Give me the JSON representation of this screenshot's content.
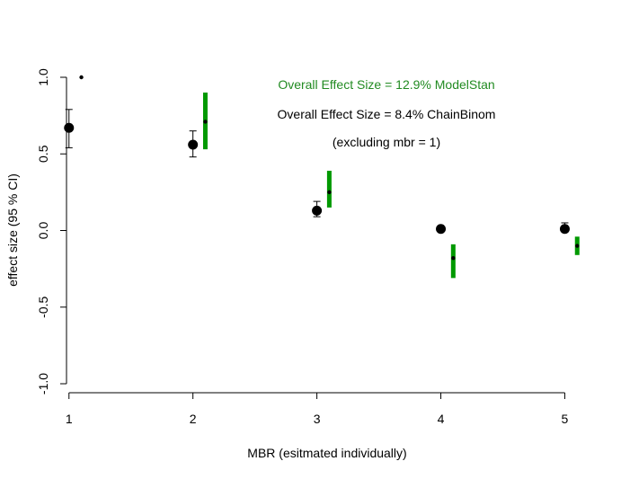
{
  "chart_data": {
    "type": "scatter",
    "xlabel": "MBR (esitmated individually)",
    "ylabel": "effect size (95 % CI)",
    "xlim": [
      0.98,
      5.12
    ],
    "ylim": [
      -1.0,
      1.0
    ],
    "x_ticks": [
      "1",
      "2",
      "3",
      "4",
      "5"
    ],
    "y_ticks": [
      "-1.0",
      "-0.5",
      "0.0",
      "0.5",
      "1.0"
    ],
    "grid": false,
    "series": [
      {
        "style": "point-with-errorbar",
        "color": "#000000",
        "points": [
          {
            "x": 1,
            "y": 0.67,
            "lo": 0.54,
            "hi": 0.79
          },
          {
            "x": 2,
            "y": 0.56,
            "lo": 0.48,
            "hi": 0.65
          },
          {
            "x": 3,
            "y": 0.13,
            "lo": 0.09,
            "hi": 0.19
          },
          {
            "x": 4,
            "y": 0.01,
            "lo": 0.01,
            "hi": 0.01
          },
          {
            "x": 5,
            "y": 0.01,
            "lo": -0.01,
            "hi": 0.05
          }
        ]
      },
      {
        "style": "dot-with-interval-bar",
        "color": "#009900",
        "points": [
          {
            "x": 1.1,
            "y": 1.0,
            "lo": 1.0,
            "hi": 1.0
          },
          {
            "x": 2.1,
            "y": 0.71,
            "lo": 0.53,
            "hi": 0.9
          },
          {
            "x": 3.1,
            "y": 0.25,
            "lo": 0.15,
            "hi": 0.39
          },
          {
            "x": 4.1,
            "y": -0.18,
            "lo": -0.31,
            "hi": -0.09
          },
          {
            "x": 5.1,
            "y": -0.1,
            "lo": -0.16,
            "hi": -0.04
          }
        ]
      }
    ],
    "annotations": [
      {
        "text": "Overall Effect Size = 12.9% ModelStan",
        "color": "#228B22"
      },
      {
        "text": "Overall Effect Size = 8.4% ChainBinom",
        "color": "#000000"
      },
      {
        "text": "(excluding mbr = 1)",
        "color": "#000000"
      }
    ]
  }
}
